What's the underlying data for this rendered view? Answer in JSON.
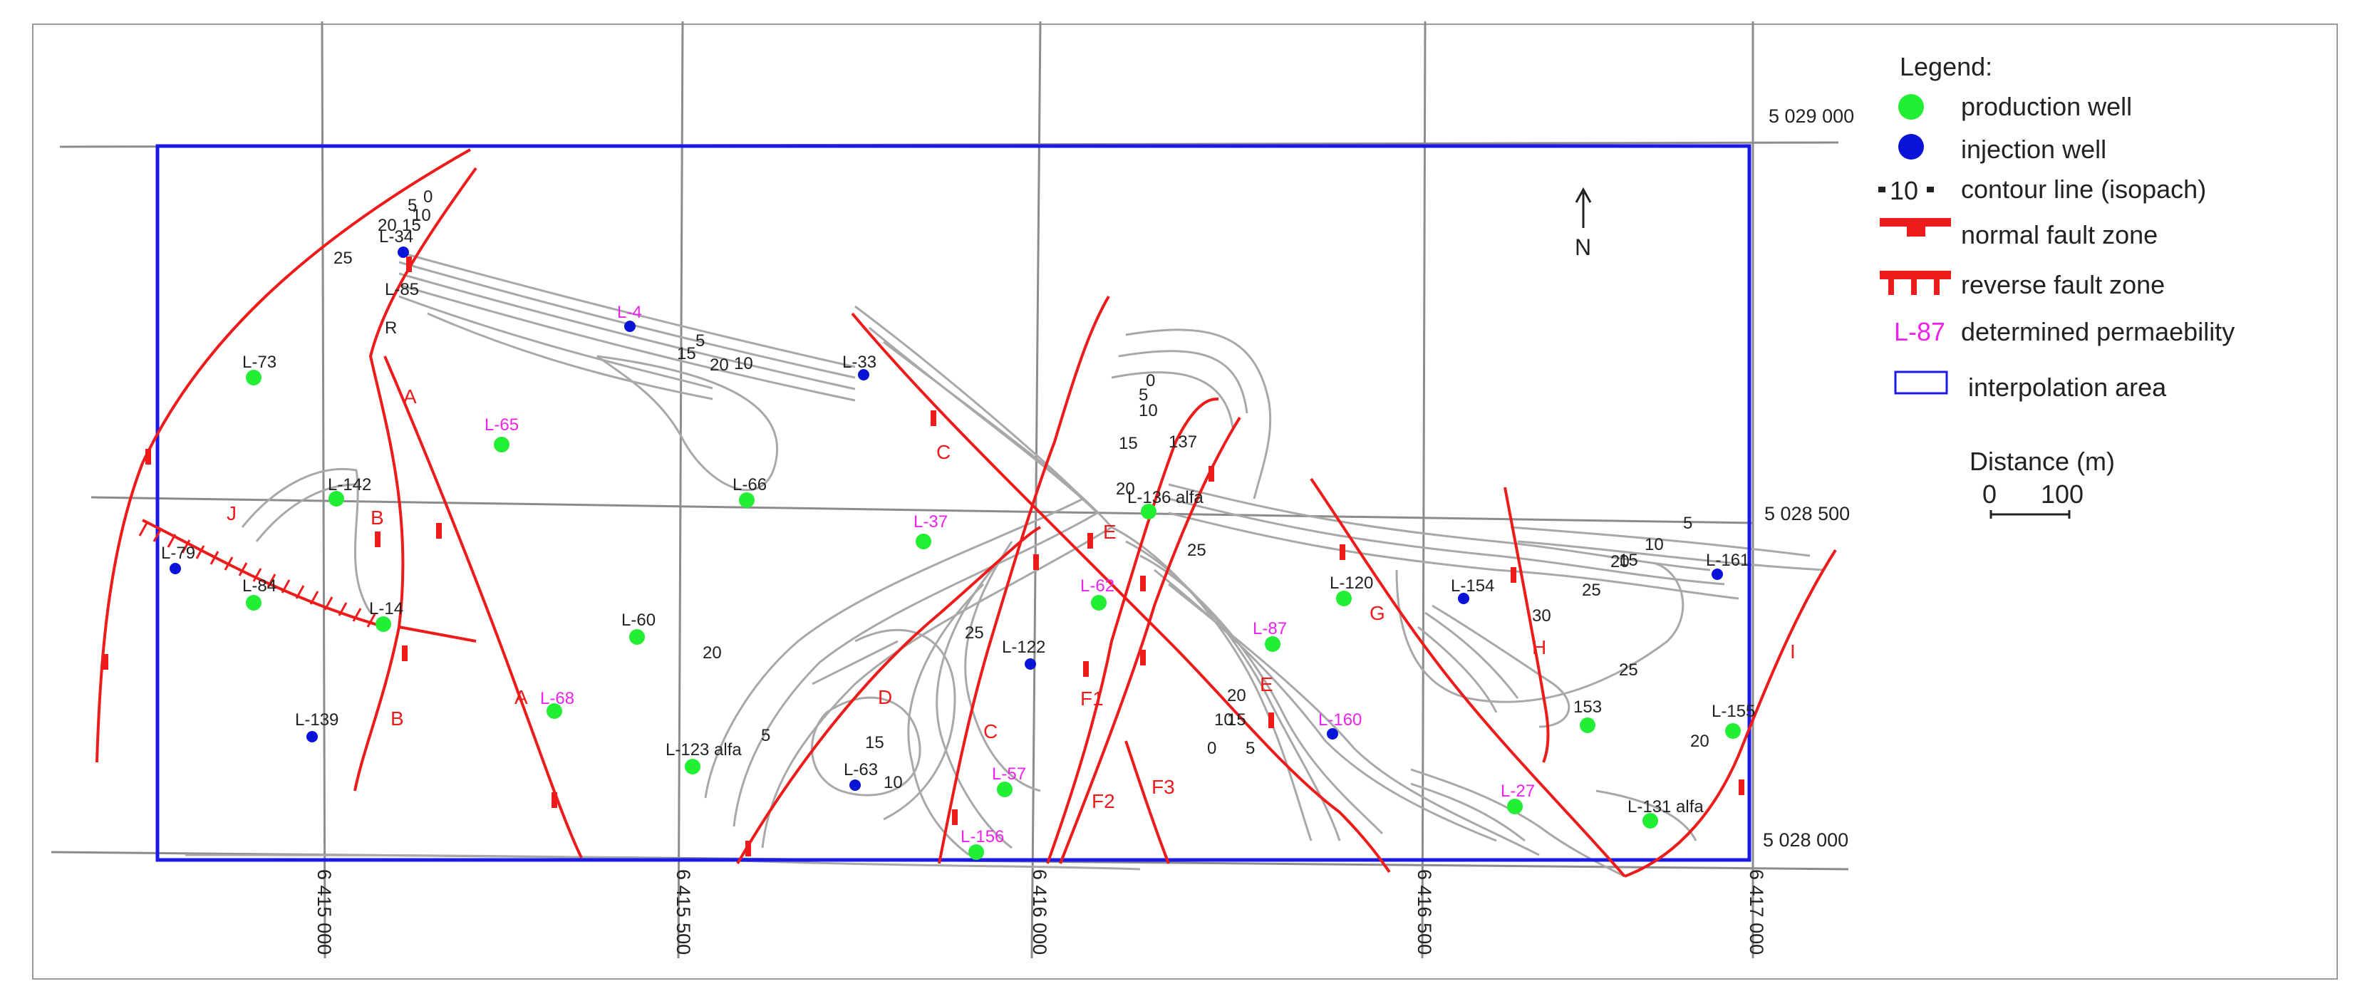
{
  "legend": {
    "title": "Legend:",
    "items": [
      {
        "symbol": "green-dot",
        "label": "production well"
      },
      {
        "symbol": "blue-dot",
        "label": "injection well"
      },
      {
        "symbol": "contour",
        "glyph": "10",
        "label": "contour line (isopach)"
      },
      {
        "symbol": "normal-fault",
        "label": "normal fault zone"
      },
      {
        "symbol": "reverse-fault",
        "label": "reverse fault zone"
      },
      {
        "symbol": "perm-label",
        "glyph": "L-87",
        "label": "determined permaebility"
      },
      {
        "symbol": "area-box",
        "label": "interpolation area"
      }
    ]
  },
  "north": "N",
  "scale": {
    "title": "Distance (m)",
    "start": "0",
    "end": "100"
  },
  "coords": {
    "x": [
      "6 415 000",
      "6 415 500",
      "6 416 000",
      "6 416 500",
      "6 417 000"
    ],
    "y": [
      "5 029 000",
      "5 028 500",
      "5 028 000"
    ]
  },
  "colors": {
    "production": "#22ee33",
    "injection": "#0a14d6",
    "fault": "#ee1b1b",
    "permeability": "#ee22ee",
    "contour": "#a8a8a8",
    "area": "#1a1ae6"
  },
  "wells": [
    {
      "name": "L-34",
      "type": "injection",
      "perm": false
    },
    {
      "name": "L-4",
      "type": "injection",
      "perm": true
    },
    {
      "name": "L-33",
      "type": "injection",
      "perm": false
    },
    {
      "name": "L-73",
      "type": "production",
      "perm": false
    },
    {
      "name": "L-65",
      "type": "production",
      "perm": true
    },
    {
      "name": "L-66",
      "type": "production",
      "perm": false
    },
    {
      "name": "L-142",
      "type": "production",
      "perm": false
    },
    {
      "name": "L-79",
      "type": "injection",
      "perm": false
    },
    {
      "name": "L-84",
      "type": "production",
      "perm": false
    },
    {
      "name": "L-14",
      "type": "production",
      "perm": false
    },
    {
      "name": "L-139",
      "type": "injection",
      "perm": false
    },
    {
      "name": "L-60",
      "type": "production",
      "perm": false
    },
    {
      "name": "L-68",
      "type": "production",
      "perm": true
    },
    {
      "name": "L-123 alfa",
      "type": "production",
      "perm": false
    },
    {
      "name": "L-37",
      "type": "production",
      "perm": true
    },
    {
      "name": "L-62",
      "type": "production",
      "perm": true
    },
    {
      "name": "L-136 alfa",
      "type": "production",
      "perm": false
    },
    {
      "name": "L-122",
      "type": "injection",
      "perm": false
    },
    {
      "name": "L-63",
      "type": "injection",
      "perm": false
    },
    {
      "name": "L-57",
      "type": "production",
      "perm": true
    },
    {
      "name": "L-156",
      "type": "production",
      "perm": true
    },
    {
      "name": "L-87",
      "type": "production",
      "perm": true
    },
    {
      "name": "L-120",
      "type": "production",
      "perm": false
    },
    {
      "name": "L-154",
      "type": "injection",
      "perm": false
    },
    {
      "name": "L-160",
      "type": "injection",
      "perm": true
    },
    {
      "name": "L-161",
      "type": "injection",
      "perm": false
    },
    {
      "name": "153",
      "type": "production",
      "perm": false
    },
    {
      "name": "L-155",
      "type": "production",
      "perm": false
    },
    {
      "name": "L-27",
      "type": "production",
      "perm": true
    },
    {
      "name": "L-131 alfa",
      "type": "production",
      "perm": false
    },
    {
      "name": "L-85",
      "type": "none",
      "perm": false
    }
  ],
  "fault_labels": [
    "A",
    "A",
    "B",
    "B",
    "C",
    "C",
    "D",
    "E",
    "E",
    "F1",
    "F2",
    "F3",
    "G",
    "H",
    "I",
    "J"
  ],
  "contour_labels": [
    "0",
    "5",
    "10",
    "15",
    "20",
    "25",
    "R",
    "137",
    "5",
    "15",
    "20",
    "10",
    "5",
    "10",
    "15",
    "20",
    "25",
    "0",
    "5",
    "10",
    "15",
    "20",
    "25",
    "20",
    "15",
    "10",
    "5",
    "0",
    "5",
    "10",
    "15",
    "20",
    "25",
    "30",
    "20",
    "25"
  ]
}
